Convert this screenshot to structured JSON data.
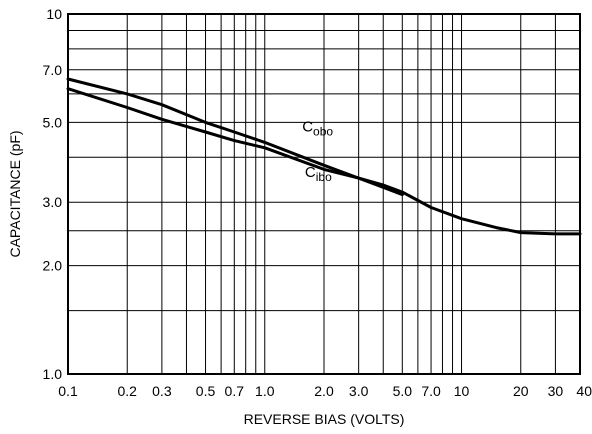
{
  "chart_data": {
    "type": "line",
    "title": "",
    "xlabel": "REVERSE BIAS (VOLTS)",
    "ylabel": "CAPACITANCE (pF)",
    "x_scale": "log",
    "y_scale": "log",
    "xlim": [
      0.1,
      40
    ],
    "ylim": [
      1.0,
      10
    ],
    "grid": true,
    "x_ticks": [
      {
        "value": 0.1,
        "label": "0.1"
      },
      {
        "value": 0.2,
        "label": "0.2"
      },
      {
        "value": 0.3,
        "label": "0.3"
      },
      {
        "value": 0.5,
        "label": "0.5"
      },
      {
        "value": 0.7,
        "label": "0.7"
      },
      {
        "value": 1.0,
        "label": "1.0"
      },
      {
        "value": 2.0,
        "label": "2.0"
      },
      {
        "value": 3.0,
        "label": "3.0"
      },
      {
        "value": 5.0,
        "label": "5.0"
      },
      {
        "value": 7.0,
        "label": "7.0"
      },
      {
        "value": 10,
        "label": "10"
      },
      {
        "value": 20,
        "label": "20"
      },
      {
        "value": 30,
        "label": "30"
      },
      {
        "value": 40,
        "label": "40"
      }
    ],
    "y_ticks": [
      {
        "value": 1.0,
        "label": "1.0"
      },
      {
        "value": 2.0,
        "label": "2.0"
      },
      {
        "value": 3.0,
        "label": "3.0"
      },
      {
        "value": 5.0,
        "label": "5.0"
      },
      {
        "value": 7.0,
        "label": "7.0"
      },
      {
        "value": 10,
        "label": "10"
      }
    ],
    "x_grid": [
      0.1,
      0.2,
      0.3,
      0.4,
      0.5,
      0.6,
      0.7,
      0.8,
      0.9,
      1,
      2,
      3,
      4,
      5,
      6,
      7,
      8,
      9,
      10,
      20,
      30,
      40
    ],
    "y_grid": [
      1,
      1.5,
      2,
      2.5,
      3,
      4,
      5,
      6,
      7,
      8,
      9,
      10
    ],
    "series": [
      {
        "name": "C",
        "name_sub": "obo",
        "x": [
          0.1,
          0.2,
          0.3,
          0.5,
          0.7,
          1.0,
          2.0,
          3.0,
          4.0,
          5.0
        ],
        "y": [
          6.6,
          6.0,
          5.6,
          5.0,
          4.7,
          4.4,
          3.8,
          3.5,
          3.3,
          3.15
        ]
      },
      {
        "name": "C",
        "name_sub": "ibo",
        "x": [
          0.1,
          0.2,
          0.3,
          0.5,
          0.7,
          1.0,
          2.0,
          3.0,
          4.0,
          5.0,
          7.0,
          10,
          15,
          20,
          30,
          40
        ],
        "y": [
          6.2,
          5.5,
          5.1,
          4.7,
          4.45,
          4.25,
          3.7,
          3.5,
          3.35,
          3.2,
          2.9,
          2.7,
          2.55,
          2.47,
          2.45,
          2.45
        ]
      }
    ],
    "annotations": [
      {
        "series": 0,
        "text": "C",
        "sub": "obo",
        "x": 1.55,
        "y": 4.72
      },
      {
        "series": 1,
        "text": "C",
        "sub": "ibo",
        "x": 1.6,
        "y": 3.52
      }
    ]
  }
}
